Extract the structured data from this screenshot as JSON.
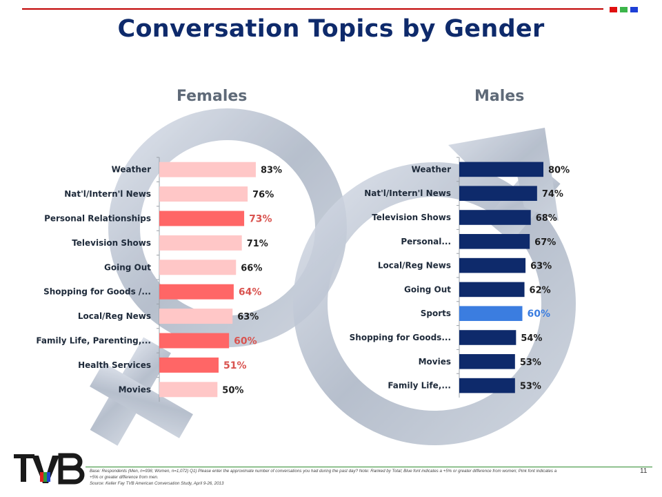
{
  "title": "Conversation Topics by Gender",
  "colors": {
    "title": "#0e2a6b",
    "female_normal": "#ffc7c7",
    "female_highlight": "#ff6666",
    "female_highlight_label": "#d9534f",
    "male_normal": "#0e2a6b",
    "male_highlight": "#3b7de0",
    "male_highlight_label": "#3b7de0"
  },
  "page_number": "11",
  "footnote": {
    "base": "Base: Respondents (Men, n=936; Women, n=1,072)   Q1) Please enter the approximate number of conversations you had during the past day?  Note: Ranked by Total; Blue font indicates a +5% or greater difference from women; Pink font indicates a +5% or greater difference from men.",
    "source": "Source: Keller Fay TVB American Conversation Study, April 9-26, 2013"
  },
  "logo": {
    "text": "TVB",
    "icon": "tvb-logo"
  },
  "chart_data": [
    {
      "type": "bar",
      "orientation": "horizontal",
      "title": "Females",
      "categories": [
        "Weather",
        "Nat'l/Intern'l News",
        "Personal Relationships",
        "Television Shows",
        "Going Out",
        "Shopping for Goods /...",
        "Local/Reg News",
        "Family Life, Parenting,...",
        "Health Services",
        "Movies"
      ],
      "values": [
        83,
        76,
        73,
        71,
        66,
        64,
        63,
        60,
        51,
        50
      ],
      "value_labels": [
        "83%",
        "76%",
        "73%",
        "71%",
        "66%",
        "64%",
        "63%",
        "60%",
        "51%",
        "50%"
      ],
      "highlighted": [
        false,
        false,
        true,
        false,
        false,
        true,
        false,
        true,
        true,
        false
      ],
      "xlim": [
        0,
        100
      ]
    },
    {
      "type": "bar",
      "orientation": "horizontal",
      "title": "Males",
      "categories": [
        "Weather",
        "Nat'l/Intern'l News",
        "Television Shows",
        "Personal...",
        "Local/Reg News",
        "Going Out",
        "Sports",
        "Shopping for Goods...",
        "Movies",
        "Family Life,..."
      ],
      "values": [
        80,
        74,
        68,
        67,
        63,
        62,
        60,
        54,
        53,
        53
      ],
      "value_labels": [
        "80%",
        "74%",
        "68%",
        "67%",
        "63%",
        "62%",
        "60%",
        "54%",
        "53%",
        "53%"
      ],
      "highlighted": [
        false,
        false,
        false,
        false,
        false,
        false,
        true,
        false,
        false,
        false
      ],
      "xlim": [
        0,
        100
      ]
    }
  ]
}
